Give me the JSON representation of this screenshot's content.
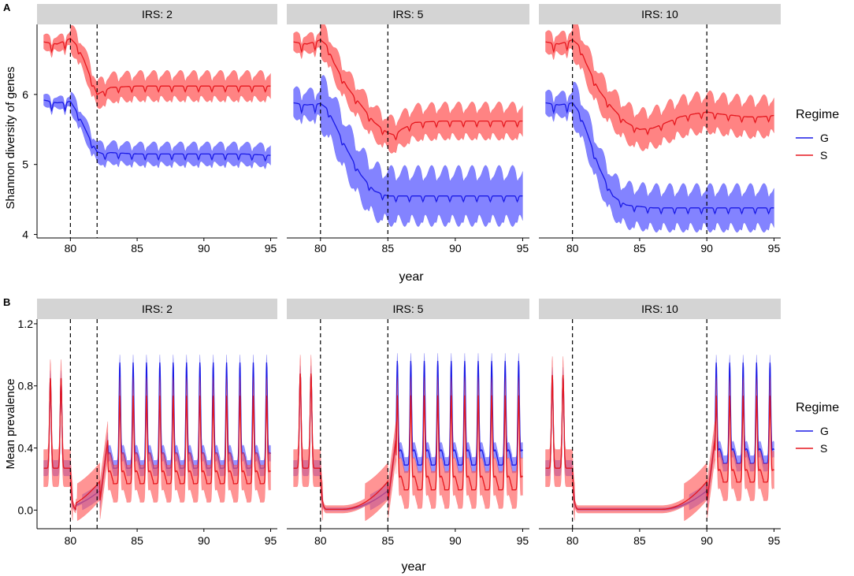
{
  "figure": {
    "colors": {
      "G": "#1a1ae6",
      "S": "#e6171e",
      "G_band": "#5a5aff",
      "S_band": "#ff5a5a",
      "strip": "#d4d4d4",
      "axis": "#000000"
    },
    "legend_title": "Regime",
    "legend_items": [
      "G",
      "S"
    ]
  },
  "chart_data": [
    {
      "type": "line",
      "panel_label": "A",
      "ylabel": "Shannon diversity of genes",
      "xlabel": "year",
      "xlim": [
        77.5,
        95.5
      ],
      "ylim": [
        3.95,
        7.0
      ],
      "xticks": [
        80,
        85,
        90,
        95
      ],
      "yticks": [
        4,
        5,
        6
      ],
      "ytick_labels": [
        "4",
        "5",
        "6"
      ],
      "legend_title": "Regime",
      "facets": [
        {
          "strip": "IRS: 2",
          "vlines": [
            80,
            82
          ],
          "series": [
            {
              "name": "S",
              "x": [
                78,
                79,
                80,
                80.5,
                81,
                81.5,
                82,
                82.5,
                83,
                85,
                87,
                89,
                91,
                93,
                95
              ],
              "y": [
                6.75,
                6.72,
                6.8,
                6.7,
                6.5,
                6.25,
                6.0,
                6.05,
                6.1,
                6.12,
                6.12,
                6.12,
                6.12,
                6.12,
                6.12
              ],
              "band": 0.18
            },
            {
              "name": "G",
              "x": [
                78,
                79,
                80,
                80.5,
                81,
                81.5,
                82,
                82.5,
                83,
                85,
                87,
                89,
                91,
                93,
                95
              ],
              "y": [
                5.92,
                5.88,
                5.9,
                5.75,
                5.55,
                5.35,
                5.18,
                5.15,
                5.17,
                5.15,
                5.15,
                5.15,
                5.15,
                5.15,
                5.13
              ],
              "band": 0.14
            }
          ]
        },
        {
          "strip": "IRS: 5",
          "vlines": [
            80,
            85
          ],
          "series": [
            {
              "name": "S",
              "x": [
                78,
                79,
                80,
                80.5,
                81,
                82,
                83,
                84,
                85,
                85.5,
                86,
                86.5,
                87,
                89,
                91,
                93,
                95
              ],
              "y": [
                6.75,
                6.72,
                6.78,
                6.7,
                6.45,
                6.1,
                5.85,
                5.6,
                5.45,
                5.42,
                5.5,
                5.55,
                5.6,
                5.62,
                5.62,
                5.62,
                5.62
              ],
              "band": 0.22
            },
            {
              "name": "G",
              "x": [
                78,
                79,
                80,
                80.5,
                81,
                82,
                83,
                84,
                85,
                87,
                89,
                91,
                93,
                95
              ],
              "y": [
                5.88,
                5.85,
                5.87,
                5.8,
                5.6,
                5.2,
                4.85,
                4.62,
                4.55,
                4.55,
                4.55,
                4.55,
                4.55,
                4.55
              ],
              "band": 0.35
            }
          ]
        },
        {
          "strip": "IRS: 10",
          "vlines": [
            80,
            90
          ],
          "series": [
            {
              "name": "S",
              "x": [
                78,
                79,
                80,
                80.5,
                81,
                82,
                83,
                84,
                85,
                86,
                87,
                88,
                89,
                90,
                91,
                92,
                93,
                94,
                95
              ],
              "y": [
                6.75,
                6.72,
                6.78,
                6.7,
                6.45,
                6.05,
                5.8,
                5.6,
                5.5,
                5.52,
                5.6,
                5.68,
                5.72,
                5.75,
                5.72,
                5.7,
                5.68,
                5.68,
                5.7
              ],
              "band": 0.25
            },
            {
              "name": "G",
              "x": [
                78,
                79,
                80,
                80.5,
                81,
                82,
                83,
                84,
                85,
                86,
                87,
                89,
                91,
                93,
                95
              ],
              "y": [
                5.88,
                5.85,
                5.88,
                5.75,
                5.5,
                4.95,
                4.55,
                4.42,
                4.4,
                4.38,
                4.38,
                4.38,
                4.38,
                4.38,
                4.38
              ],
              "band": 0.28
            }
          ]
        }
      ]
    },
    {
      "type": "line",
      "panel_label": "B",
      "ylabel": "Mean prevalence",
      "xlabel": "year",
      "xlim": [
        77.5,
        95.5
      ],
      "ylim": [
        -0.12,
        1.23
      ],
      "xticks": [
        80,
        85,
        90,
        95
      ],
      "yticks": [
        0.0,
        0.4,
        0.8,
        1.2
      ],
      "ytick_labels": [
        "0.0",
        "0.4",
        "0.8",
        "1.2"
      ],
      "legend_title": "Regime",
      "facets": [
        {
          "strip": "IRS: 2",
          "vlines": [
            80,
            82
          ],
          "pre_peaks": [
            78.5,
            79.3
          ],
          "pre_peak_height": 0.85,
          "pre_base": 0.27,
          "cycle_start": 82.8,
          "series": [
            {
              "name": "G",
              "base": 0.27,
              "peak": 0.93,
              "band": 0.05
            },
            {
              "name": "S",
              "base": 0.17,
              "peak": 0.72,
              "band": 0.12
            }
          ]
        },
        {
          "strip": "IRS: 5",
          "vlines": [
            80,
            85
          ],
          "pre_peaks": [
            78.5,
            79.3
          ],
          "pre_peak_height": 0.88,
          "pre_base": 0.27,
          "cycle_start": 85.6,
          "series": [
            {
              "name": "G",
              "base": 0.29,
              "peak": 0.94,
              "band": 0.05
            },
            {
              "name": "S",
              "base": 0.13,
              "peak": 0.72,
              "band": 0.12
            }
          ]
        },
        {
          "strip": "IRS: 10",
          "vlines": [
            80,
            90
          ],
          "pre_peaks": [
            78.5,
            79.3
          ],
          "pre_peak_height": 0.87,
          "pre_base": 0.27,
          "cycle_start": 90.6,
          "series": [
            {
              "name": "G",
              "base": 0.3,
              "peak": 0.93,
              "band": 0.05
            },
            {
              "name": "S",
              "base": 0.18,
              "peak": 0.72,
              "band": 0.12
            }
          ]
        }
      ]
    }
  ]
}
